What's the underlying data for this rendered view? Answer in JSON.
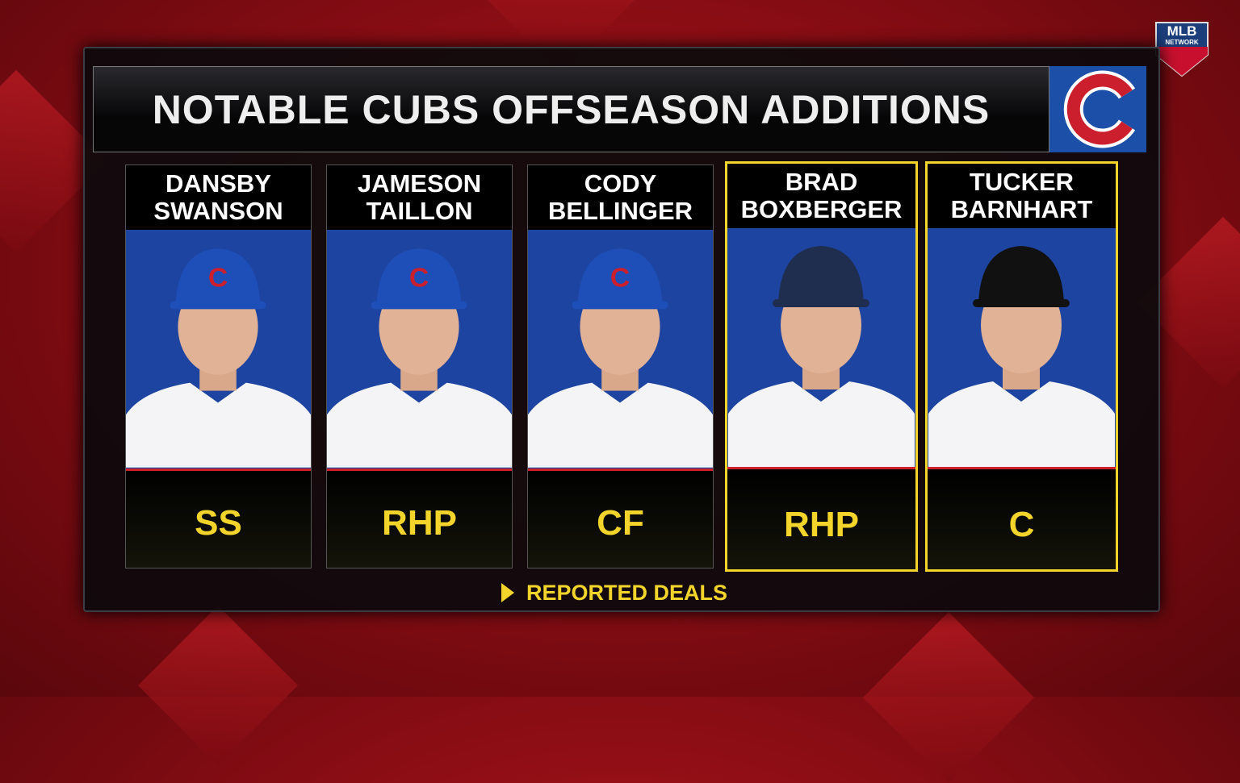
{
  "header": {
    "title": "NOTABLE CUBS OFFSEASON ADDITIONS"
  },
  "network_logo": {
    "top": "MLB",
    "bottom": "NETWORK"
  },
  "players": [
    {
      "name": [
        "DANSBY",
        "SWANSON"
      ],
      "position": "SS",
      "reported": false,
      "cap": "#1e4fb8",
      "cap_mark": "C"
    },
    {
      "name": [
        "JAMESON",
        "TAILLON"
      ],
      "position": "RHP",
      "reported": false,
      "cap": "#1e4fb8",
      "cap_mark": "C"
    },
    {
      "name": [
        "CODY",
        "BELLINGER"
      ],
      "position": "CF",
      "reported": false,
      "cap": "#1e4fb8",
      "cap_mark": "C"
    },
    {
      "name": [
        "BRAD",
        "BOXBERGER"
      ],
      "position": "RHP",
      "reported": true,
      "cap": "#1f2d4f"
    },
    {
      "name": [
        "TUCKER",
        "BARNHART"
      ],
      "position": "C",
      "reported": true,
      "cap": "#111111"
    }
  ],
  "footer": {
    "note": "REPORTED DEALS"
  }
}
